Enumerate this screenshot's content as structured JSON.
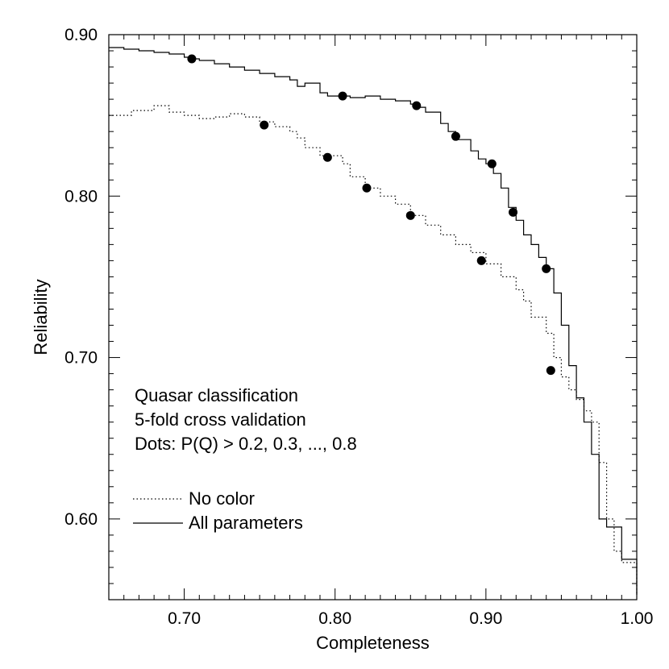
{
  "chart_data": {
    "type": "line",
    "xlabel": "Completeness",
    "ylabel": "Reliability",
    "xlim": [
      0.65,
      1.0
    ],
    "ylim": [
      0.55,
      0.9
    ],
    "xticks": [
      0.7,
      0.8,
      0.9,
      1.0
    ],
    "xtick_labels": [
      "0.70",
      "0.80",
      "0.90",
      "1.00"
    ],
    "yticks": [
      0.6,
      0.7,
      0.8,
      0.9
    ],
    "ytick_labels": [
      "0.60",
      "0.70",
      "0.80",
      "0.90"
    ],
    "grid": false,
    "annotations": [
      "Quasar classification",
      "5-fold cross validation",
      "Dots: P(Q) > 0.2, 0.3, ..., 0.8"
    ],
    "legend": {
      "placement": "lower-left",
      "entries": [
        {
          "label": "No color",
          "style": "dotted"
        },
        {
          "label": "All parameters",
          "style": "solid"
        }
      ]
    },
    "series": [
      {
        "name": "No color",
        "style": "dotted",
        "color": "#000000",
        "x": [
          0.65,
          0.665,
          0.68,
          0.69,
          0.7,
          0.71,
          0.72,
          0.73,
          0.74,
          0.75,
          0.76,
          0.77,
          0.775,
          0.78,
          0.79,
          0.8,
          0.805,
          0.81,
          0.82,
          0.83,
          0.84,
          0.85,
          0.86,
          0.87,
          0.88,
          0.89,
          0.9,
          0.91,
          0.92,
          0.925,
          0.93,
          0.94,
          0.945,
          0.95,
          0.955,
          0.96,
          0.965,
          0.97,
          0.975,
          0.98,
          0.985,
          0.99,
          1.0
        ],
        "y": [
          0.85,
          0.853,
          0.856,
          0.852,
          0.85,
          0.848,
          0.849,
          0.851,
          0.849,
          0.846,
          0.843,
          0.84,
          0.836,
          0.83,
          0.825,
          0.825,
          0.82,
          0.812,
          0.805,
          0.8,
          0.795,
          0.788,
          0.782,
          0.776,
          0.77,
          0.765,
          0.758,
          0.75,
          0.742,
          0.735,
          0.725,
          0.715,
          0.7,
          0.688,
          0.68,
          0.674,
          0.667,
          0.66,
          0.635,
          0.6,
          0.58,
          0.573,
          0.553
        ]
      },
      {
        "name": "All parameters",
        "style": "solid",
        "color": "#000000",
        "x": [
          0.65,
          0.66,
          0.67,
          0.68,
          0.69,
          0.7,
          0.705,
          0.71,
          0.72,
          0.73,
          0.74,
          0.75,
          0.76,
          0.77,
          0.775,
          0.78,
          0.79,
          0.795,
          0.8,
          0.805,
          0.81,
          0.82,
          0.83,
          0.84,
          0.85,
          0.855,
          0.86,
          0.87,
          0.875,
          0.88,
          0.89,
          0.895,
          0.9,
          0.905,
          0.91,
          0.915,
          0.92,
          0.925,
          0.93,
          0.935,
          0.94,
          0.945,
          0.95,
          0.955,
          0.96,
          0.965,
          0.97,
          0.975,
          0.98,
          0.99,
          1.0
        ],
        "y": [
          0.892,
          0.891,
          0.89,
          0.889,
          0.888,
          0.886,
          0.885,
          0.884,
          0.882,
          0.88,
          0.878,
          0.876,
          0.874,
          0.872,
          0.868,
          0.87,
          0.864,
          0.862,
          0.862,
          0.862,
          0.861,
          0.862,
          0.86,
          0.859,
          0.857,
          0.855,
          0.852,
          0.845,
          0.84,
          0.835,
          0.828,
          0.823,
          0.82,
          0.814,
          0.805,
          0.793,
          0.785,
          0.776,
          0.77,
          0.762,
          0.755,
          0.74,
          0.72,
          0.695,
          0.675,
          0.66,
          0.64,
          0.6,
          0.595,
          0.575,
          0.553
        ]
      }
    ],
    "markers": {
      "name": "P(Q) thresholds",
      "shape": "filled-circle",
      "color": "#000000",
      "points": [
        {
          "x": 0.705,
          "y": 0.885
        },
        {
          "x": 0.805,
          "y": 0.862
        },
        {
          "x": 0.854,
          "y": 0.856
        },
        {
          "x": 0.88,
          "y": 0.837
        },
        {
          "x": 0.904,
          "y": 0.82
        },
        {
          "x": 0.918,
          "y": 0.79
        },
        {
          "x": 0.94,
          "y": 0.755
        },
        {
          "x": 0.753,
          "y": 0.844
        },
        {
          "x": 0.795,
          "y": 0.824
        },
        {
          "x": 0.821,
          "y": 0.805
        },
        {
          "x": 0.85,
          "y": 0.788
        },
        {
          "x": 0.897,
          "y": 0.76
        },
        {
          "x": 0.943,
          "y": 0.692
        }
      ]
    }
  }
}
